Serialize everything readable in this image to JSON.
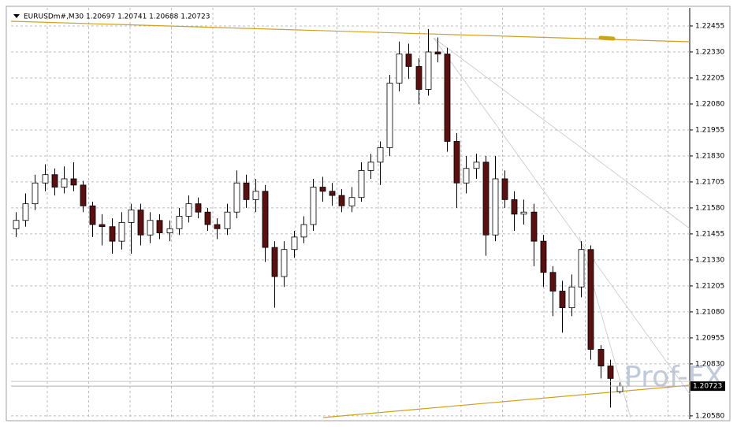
{
  "chart_data": {
    "type": "candlestick",
    "title": "EURUSDm#,M30  1.20697 1.20741 1.20688 1.20723",
    "watermark": "Prof-FX",
    "up_color": "#ffffff",
    "down_color": "#5a1010",
    "wick_color": "#000000",
    "ylim": [
      1.20572,
      1.22542
    ],
    "yticks": [
      1.22455,
      {
        "value": 1.2233,
        "label": "1.22330"
      },
      1.22205,
      {
        "value": 1.2208,
        "label": "1.22080"
      },
      1.21955,
      {
        "value": 1.2183,
        "label": "1.21830"
      },
      1.21705,
      {
        "value": 1.2158,
        "label": "1.21580"
      },
      1.21455,
      {
        "value": 1.2133,
        "label": "1.21330"
      },
      1.21205,
      {
        "value": 1.2108,
        "label": "1.21080"
      },
      1.20955,
      {
        "value": 1.2083,
        "label": "1.20830"
      },
      {
        "value": 1.2058,
        "label": "1.20580"
      }
    ],
    "grid": true,
    "ohlc": [
      [
        1.2148,
        1.2156,
        1.2144,
        1.2152
      ],
      [
        1.2152,
        1.2165,
        1.2149,
        1.216
      ],
      [
        1.216,
        1.2174,
        1.2157,
        1.217
      ],
      [
        1.217,
        1.2179,
        1.2166,
        1.2174
      ],
      [
        1.2174,
        1.2177,
        1.2164,
        1.2168
      ],
      [
        1.2168,
        1.2178,
        1.2165,
        1.2172
      ],
      [
        1.2172,
        1.218,
        1.2166,
        1.2169
      ],
      [
        1.2169,
        1.2171,
        1.2156,
        1.2159
      ],
      [
        1.2159,
        1.2161,
        1.2144,
        1.215
      ],
      [
        1.215,
        1.2155,
        1.214,
        1.2149
      ],
      [
        1.2149,
        1.2153,
        1.2136,
        1.2142
      ],
      [
        1.2142,
        1.2156,
        1.2138,
        1.2151
      ],
      [
        1.2151,
        1.216,
        1.2136,
        1.2157
      ],
      [
        1.2157,
        1.216,
        1.214,
        1.2145
      ],
      [
        1.2145,
        1.2156,
        1.2141,
        1.2152
      ],
      [
        1.2152,
        1.2155,
        1.2143,
        1.2146
      ],
      [
        1.2146,
        1.2152,
        1.2142,
        1.2148
      ],
      [
        1.2148,
        1.2158,
        1.2145,
        1.2154
      ],
      [
        1.2154,
        1.2164,
        1.2151,
        1.216
      ],
      [
        1.216,
        1.2163,
        1.2153,
        1.2156
      ],
      [
        1.2156,
        1.2158,
        1.2147,
        1.215
      ],
      [
        1.215,
        1.2153,
        1.2143,
        1.2148
      ],
      [
        1.2148,
        1.216,
        1.2145,
        1.2156
      ],
      [
        1.2156,
        1.2176,
        1.2153,
        1.217
      ],
      [
        1.217,
        1.2174,
        1.2158,
        1.2162
      ],
      [
        1.2162,
        1.2172,
        1.2156,
        1.2166
      ],
      [
        1.2166,
        1.2169,
        1.2132,
        1.2139
      ],
      [
        1.2139,
        1.2142,
        1.211,
        1.2125
      ],
      [
        1.2125,
        1.2142,
        1.212,
        1.2138
      ],
      [
        1.2138,
        1.2147,
        1.2134,
        1.2144
      ],
      [
        1.2144,
        1.2154,
        1.2141,
        1.215
      ],
      [
        1.215,
        1.2172,
        1.2147,
        1.2168
      ],
      [
        1.2168,
        1.2173,
        1.2161,
        1.2166
      ],
      [
        1.2166,
        1.217,
        1.2159,
        1.2164
      ],
      [
        1.2164,
        1.2167,
        1.2156,
        1.2159
      ],
      [
        1.2159,
        1.2168,
        1.2156,
        1.2163
      ],
      [
        1.2163,
        1.218,
        1.2161,
        1.2176
      ],
      [
        1.2176,
        1.2184,
        1.2172,
        1.218
      ],
      [
        1.218,
        1.219,
        1.2169,
        1.2187
      ],
      [
        1.2187,
        1.2222,
        1.2183,
        1.2218
      ],
      [
        1.2218,
        1.2238,
        1.2214,
        1.2232
      ],
      [
        1.2232,
        1.2237,
        1.222,
        1.2226
      ],
      [
        1.2226,
        1.223,
        1.2208,
        1.2215
      ],
      [
        1.2215,
        1.2244,
        1.2212,
        1.2233
      ],
      [
        1.2233,
        1.224,
        1.2228,
        1.2232
      ],
      [
        1.2232,
        1.2235,
        1.2185,
        1.219
      ],
      [
        1.219,
        1.2194,
        1.2158,
        1.217
      ],
      [
        1.217,
        1.2183,
        1.2165,
        1.2177
      ],
      [
        1.2177,
        1.2184,
        1.2172,
        1.218
      ],
      [
        1.218,
        1.2183,
        1.2135,
        1.2145
      ],
      [
        1.2145,
        1.2183,
        1.2142,
        1.2172
      ],
      [
        1.2172,
        1.2176,
        1.2158,
        1.2162
      ],
      [
        1.2162,
        1.2166,
        1.2147,
        1.2155
      ],
      [
        1.2155,
        1.2162,
        1.215,
        1.2156
      ],
      [
        1.2156,
        1.216,
        1.213,
        1.2142
      ],
      [
        1.2142,
        1.2145,
        1.212,
        1.2127
      ],
      [
        1.2127,
        1.213,
        1.2106,
        1.2118
      ],
      [
        1.2118,
        1.2123,
        1.2098,
        1.211
      ],
      [
        1.211,
        1.2126,
        1.2106,
        1.212
      ],
      [
        1.212,
        1.2142,
        1.2115,
        1.2138
      ],
      [
        1.2138,
        1.214,
        1.2085,
        1.209
      ],
      [
        1.209,
        1.2092,
        1.2076,
        1.2082
      ],
      [
        1.2082,
        1.2085,
        1.2062,
        1.2076
      ],
      [
        1.20697,
        1.20741,
        1.20688,
        1.20723
      ]
    ]
  }
}
